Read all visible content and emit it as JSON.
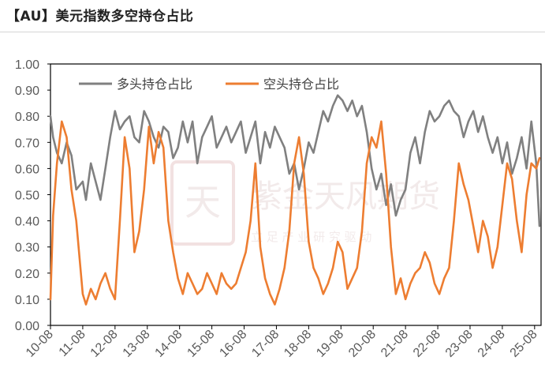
{
  "title": "【AU】美元指数多空持仓占比",
  "watermark": {
    "seal_chars": "天",
    "brand": "紫金天风期货",
    "subtitle": "立 足 产 业 研 究 驱 动"
  },
  "chart_data": {
    "type": "line",
    "title": "",
    "xlabel": "",
    "ylabel": "",
    "ylim": [
      0,
      1.0
    ],
    "yticks": [
      "0.00",
      "0.10",
      "0.20",
      "0.30",
      "0.40",
      "0.50",
      "0.60",
      "0.70",
      "0.80",
      "0.90",
      "1.00"
    ],
    "xticks": [
      "10-08",
      "11-08",
      "12-08",
      "13-08",
      "14-08",
      "15-08",
      "16-08",
      "17-08",
      "18-08",
      "19-08",
      "20-08",
      "21-08",
      "22-08",
      "23-08",
      "24-08",
      "25-08"
    ],
    "xrange": [
      2010.0,
      2025.2
    ],
    "legend_position": "top-left",
    "grid": false,
    "series": [
      {
        "name": "多头持仓占比",
        "color": "#808080",
        "x": [
          2010.0,
          2010.08,
          2010.2,
          2010.35,
          2010.5,
          2010.65,
          2010.8,
          2011.0,
          2011.1,
          2011.25,
          2011.4,
          2011.55,
          2011.7,
          2011.85,
          2012.0,
          2012.15,
          2012.3,
          2012.45,
          2012.6,
          2012.75,
          2012.9,
          2013.05,
          2013.2,
          2013.35,
          2013.5,
          2013.65,
          2013.8,
          2013.95,
          2014.1,
          2014.25,
          2014.4,
          2014.55,
          2014.7,
          2014.85,
          2015.0,
          2015.15,
          2015.3,
          2015.45,
          2015.6,
          2015.75,
          2015.9,
          2016.05,
          2016.2,
          2016.35,
          2016.5,
          2016.65,
          2016.8,
          2016.95,
          2017.1,
          2017.25,
          2017.4,
          2017.55,
          2017.7,
          2017.85,
          2018.0,
          2018.15,
          2018.3,
          2018.45,
          2018.6,
          2018.75,
          2018.9,
          2019.05,
          2019.2,
          2019.35,
          2019.5,
          2019.65,
          2019.8,
          2019.95,
          2020.1,
          2020.25,
          2020.4,
          2020.55,
          2020.7,
          2020.85,
          2021.0,
          2021.15,
          2021.3,
          2021.45,
          2021.6,
          2021.75,
          2021.9,
          2022.05,
          2022.2,
          2022.35,
          2022.5,
          2022.65,
          2022.8,
          2022.95,
          2023.1,
          2023.25,
          2023.4,
          2023.55,
          2023.7,
          2023.85,
          2024.0,
          2024.15,
          2024.3,
          2024.45,
          2024.6,
          2024.75,
          2024.9,
          2025.05,
          2025.15
        ],
        "values": [
          0.8,
          0.72,
          0.66,
          0.62,
          0.7,
          0.65,
          0.52,
          0.55,
          0.48,
          0.62,
          0.55,
          0.48,
          0.6,
          0.72,
          0.82,
          0.75,
          0.78,
          0.8,
          0.72,
          0.7,
          0.82,
          0.78,
          0.72,
          0.68,
          0.76,
          0.74,
          0.64,
          0.68,
          0.78,
          0.7,
          0.78,
          0.62,
          0.72,
          0.76,
          0.8,
          0.68,
          0.72,
          0.76,
          0.7,
          0.74,
          0.78,
          0.66,
          0.72,
          0.78,
          0.62,
          0.74,
          0.68,
          0.76,
          0.72,
          0.68,
          0.58,
          0.62,
          0.52,
          0.6,
          0.7,
          0.66,
          0.74,
          0.82,
          0.78,
          0.84,
          0.88,
          0.86,
          0.82,
          0.86,
          0.8,
          0.84,
          0.74,
          0.6,
          0.52,
          0.58,
          0.46,
          0.54,
          0.42,
          0.48,
          0.52,
          0.66,
          0.72,
          0.62,
          0.74,
          0.82,
          0.78,
          0.8,
          0.84,
          0.86,
          0.82,
          0.8,
          0.72,
          0.78,
          0.82,
          0.74,
          0.8,
          0.72,
          0.66,
          0.72,
          0.62,
          0.7,
          0.58,
          0.64,
          0.72,
          0.6,
          0.78,
          0.62,
          0.38
        ]
      },
      {
        "name": "空头持仓占比",
        "color": "#ED7D31",
        "x": [
          2010.0,
          2010.08,
          2010.2,
          2010.35,
          2010.5,
          2010.65,
          2010.8,
          2011.0,
          2011.1,
          2011.25,
          2011.4,
          2011.55,
          2011.7,
          2011.85,
          2012.0,
          2012.15,
          2012.3,
          2012.45,
          2012.6,
          2012.75,
          2012.9,
          2013.05,
          2013.2,
          2013.35,
          2013.5,
          2013.65,
          2013.8,
          2013.95,
          2014.1,
          2014.25,
          2014.4,
          2014.55,
          2014.7,
          2014.85,
          2015.0,
          2015.15,
          2015.3,
          2015.45,
          2015.6,
          2015.75,
          2015.9,
          2016.05,
          2016.2,
          2016.35,
          2016.5,
          2016.65,
          2016.8,
          2016.95,
          2017.1,
          2017.25,
          2017.4,
          2017.55,
          2017.7,
          2017.85,
          2018.0,
          2018.15,
          2018.3,
          2018.45,
          2018.6,
          2018.75,
          2018.9,
          2019.05,
          2019.2,
          2019.35,
          2019.5,
          2019.65,
          2019.8,
          2019.95,
          2020.1,
          2020.25,
          2020.4,
          2020.55,
          2020.7,
          2020.85,
          2021.0,
          2021.15,
          2021.3,
          2021.45,
          2021.6,
          2021.75,
          2021.9,
          2022.05,
          2022.2,
          2022.35,
          2022.5,
          2022.65,
          2022.8,
          2022.95,
          2023.1,
          2023.25,
          2023.4,
          2023.55,
          2023.7,
          2023.85,
          2024.0,
          2024.15,
          2024.3,
          2024.45,
          2024.6,
          2024.75,
          2024.9,
          2025.05,
          2025.15
        ],
        "values": [
          0.1,
          0.42,
          0.62,
          0.78,
          0.72,
          0.52,
          0.4,
          0.12,
          0.08,
          0.14,
          0.1,
          0.16,
          0.2,
          0.14,
          0.1,
          0.4,
          0.72,
          0.6,
          0.28,
          0.36,
          0.52,
          0.76,
          0.62,
          0.74,
          0.68,
          0.4,
          0.28,
          0.18,
          0.12,
          0.2,
          0.16,
          0.12,
          0.14,
          0.2,
          0.16,
          0.12,
          0.2,
          0.16,
          0.14,
          0.16,
          0.22,
          0.28,
          0.4,
          0.62,
          0.3,
          0.18,
          0.12,
          0.08,
          0.14,
          0.22,
          0.36,
          0.62,
          0.72,
          0.58,
          0.32,
          0.22,
          0.18,
          0.12,
          0.16,
          0.22,
          0.32,
          0.28,
          0.14,
          0.18,
          0.22,
          0.36,
          0.62,
          0.72,
          0.68,
          0.78,
          0.58,
          0.3,
          0.12,
          0.18,
          0.1,
          0.16,
          0.2,
          0.22,
          0.28,
          0.24,
          0.16,
          0.12,
          0.18,
          0.22,
          0.4,
          0.62,
          0.54,
          0.48,
          0.38,
          0.28,
          0.4,
          0.34,
          0.22,
          0.3,
          0.46,
          0.62,
          0.56,
          0.4,
          0.28,
          0.5,
          0.62,
          0.6,
          0.64
        ]
      }
    ]
  }
}
